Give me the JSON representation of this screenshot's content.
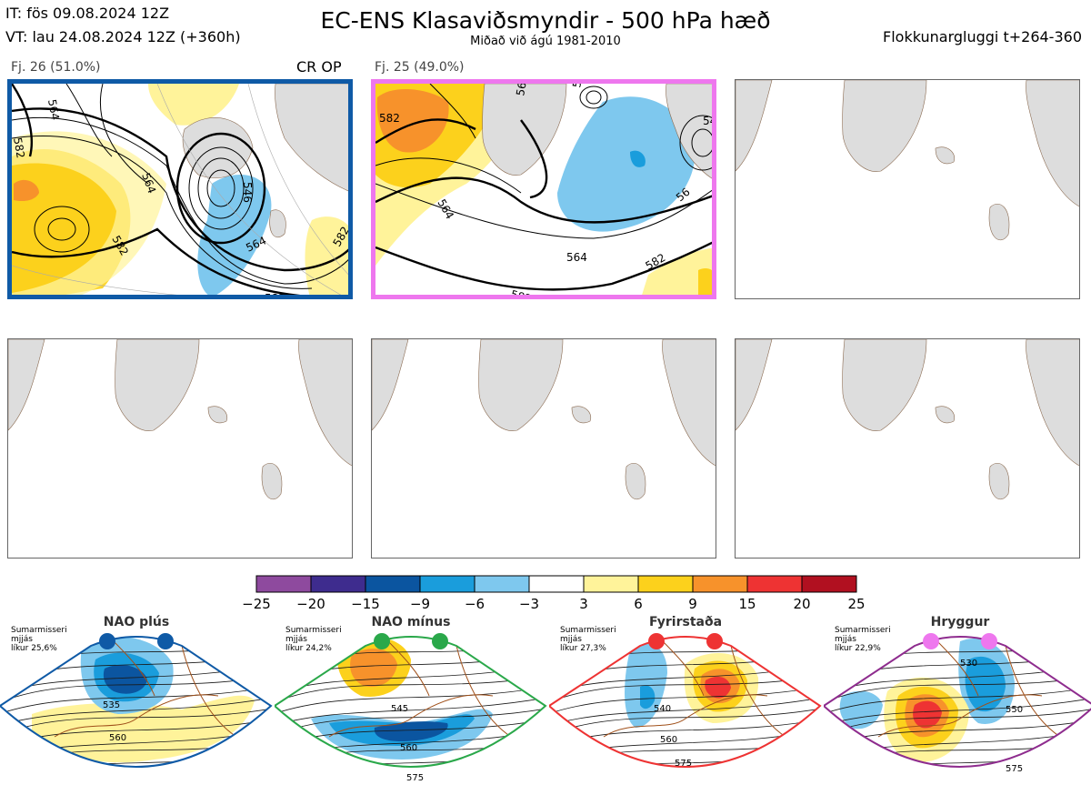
{
  "header": {
    "it": "IT: fös 09.08.2024 12Z",
    "vt": "VT: lau 24.08.2024 12Z  (+360h)",
    "title": "EC-ENS Klasaviðsmyndir - 500 hPa hæð",
    "subtitle": "Miðað við ágú 1981-2010",
    "window": "Flokkunargluggi t+264-360"
  },
  "panels": [
    {
      "label": "Fj. 26 (51.0%)",
      "tag": "CR OP",
      "border": "#0f5aa6",
      "contours": [
        "564",
        "546",
        "564",
        "582",
        "582",
        "564",
        "582",
        "582"
      ]
    },
    {
      "label": "Fj. 25 (49.0%)",
      "tag": "",
      "border": "#ee77ee",
      "contours": [
        "582",
        "564",
        "546",
        "564",
        "582",
        "582",
        "54",
        "56",
        "56"
      ]
    }
  ],
  "colorbar": {
    "ticks": [
      "−25",
      "−20",
      "−15",
      "−9",
      "−6",
      "−3",
      "3",
      "6",
      "9",
      "15",
      "20",
      "25"
    ],
    "colors": [
      "#8e4a9e",
      "#3e2c8e",
      "#0b55a0",
      "#1a9ddc",
      "#7ec8ee",
      "#ffffff",
      "#fff39a",
      "#fcd11c",
      "#f7922b",
      "#ee3333",
      "#b11020"
    ]
  },
  "regimes": [
    {
      "name": "NAO plús",
      "season": "Sumarmisseri",
      "avg": "mjjás",
      "prob": "líkur 25,6%",
      "border": "#0f5aa6",
      "dot": "#0f5aa6",
      "labels": [
        "535",
        "560"
      ]
    },
    {
      "name": "NAO mínus",
      "season": "Sumarmisseri",
      "avg": "mjjás",
      "prob": "líkur 24,2%",
      "border": "#2aa84a",
      "dot": "#2aa84a",
      "labels": [
        "545",
        "560",
        "575"
      ]
    },
    {
      "name": "Fyrirstaða",
      "season": "Sumarmisseri",
      "avg": "mjjás",
      "prob": "líkur 27,3%",
      "border": "#ee3333",
      "dot": "#ee3333",
      "labels": [
        "540",
        "560",
        "575"
      ]
    },
    {
      "name": "Hryggur",
      "season": "Sumarmisseri",
      "avg": "mjjás",
      "prob": "líkur 22,9%",
      "border": "#8e2c8e",
      "dot": "#ee77ee",
      "labels": [
        "530",
        "550",
        "575"
      ]
    }
  ]
}
